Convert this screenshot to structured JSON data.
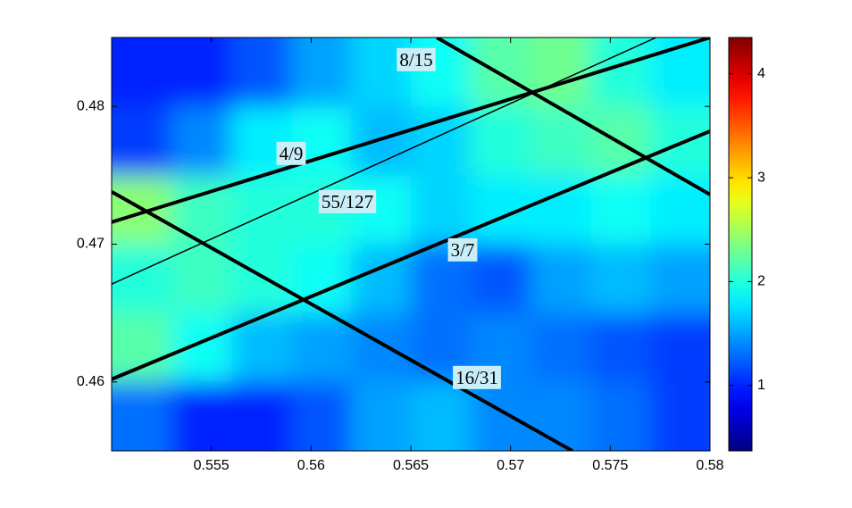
{
  "chart_data": {
    "type": "heatmap",
    "xlim": [
      0.55,
      0.58
    ],
    "ylim": [
      0.455,
      0.485
    ],
    "xticks": [
      0.555,
      0.56,
      0.565,
      0.57,
      0.575,
      0.58
    ],
    "yticks": [
      0.46,
      0.47,
      0.48
    ],
    "clim": [
      0.37,
      4.35
    ],
    "cticks": [
      1,
      2,
      3,
      4
    ],
    "colormap": "jet",
    "heatmap": {
      "x": [
        0.5515,
        0.5545,
        0.5575,
        0.5605,
        0.5635,
        0.5665,
        0.5695,
        0.5725,
        0.5755,
        0.5785
      ],
      "y": [
        0.4825,
        0.4775,
        0.4725,
        0.4675,
        0.4625,
        0.4575
      ],
      "z": [
        [
          1.0,
          1.0,
          1.2,
          1.5,
          1.7,
          1.9,
          2.2,
          2.3,
          2.0,
          1.8
        ],
        [
          1.1,
          1.4,
          1.8,
          1.9,
          1.6,
          1.7,
          2.0,
          2.1,
          2.2,
          2.0
        ],
        [
          2.4,
          2.1,
          2.0,
          2.0,
          1.9,
          1.7,
          1.8,
          1.8,
          1.9,
          1.8
        ],
        [
          2.0,
          2.1,
          2.0,
          1.9,
          1.6,
          1.3,
          1.2,
          1.5,
          1.6,
          1.5
        ],
        [
          2.2,
          1.9,
          1.6,
          1.5,
          1.4,
          1.3,
          1.4,
          1.3,
          1.2,
          1.1
        ],
        [
          1.3,
          1.0,
          1.0,
          1.2,
          1.5,
          1.6,
          1.4,
          1.4,
          1.3,
          1.1
        ]
      ]
    },
    "series": [
      {
        "name": "8/15",
        "color": "#000000",
        "linewidth": 4,
        "x": [
          0.5663,
          0.58
        ],
        "values": [
          0.485,
          0.4736
        ]
      },
      {
        "name": "4/9",
        "color": "#000000",
        "linewidth": 4,
        "x": [
          0.55,
          0.58
        ],
        "values": [
          0.4716,
          0.485
        ]
      },
      {
        "name": "55/127",
        "color": "#000000",
        "linewidth": 1.5,
        "x": [
          0.55,
          0.5773
        ],
        "values": [
          0.4671,
          0.485
        ]
      },
      {
        "name": "3/7",
        "color": "#000000",
        "linewidth": 4,
        "x": [
          0.55,
          0.58
        ],
        "values": [
          0.4602,
          0.4782
        ]
      },
      {
        "name": "16/31",
        "color": "#000000",
        "linewidth": 4,
        "x": [
          0.55,
          0.5731
        ],
        "values": [
          0.4738,
          0.455
        ]
      }
    ]
  }
}
